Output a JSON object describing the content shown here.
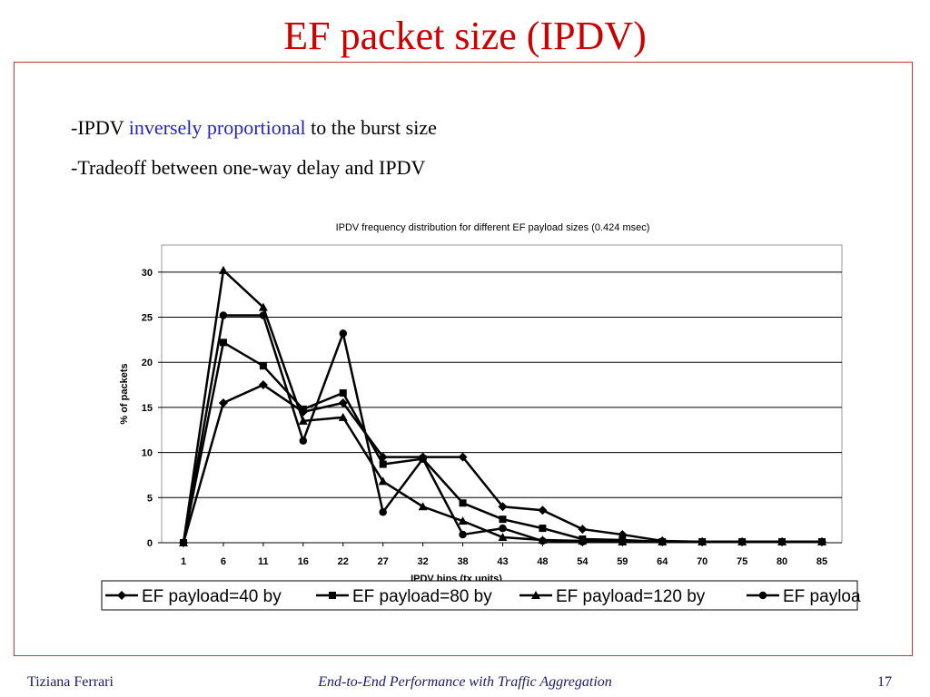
{
  "slide": {
    "title": "EF packet size (IPDV)",
    "bullets": [
      {
        "prefix": "-IPDV ",
        "highlight": "inversely proportional",
        "suffix": " to the burst size"
      },
      {
        "prefix": "-Tradeoff between one-way delay and IPDV",
        "highlight": "",
        "suffix": ""
      }
    ],
    "highlight_color": "#2222cc",
    "title_color": "#cc0000"
  },
  "footer": {
    "author": "Tiziana Ferrari",
    "title": "End-to-End Performance with Traffic Aggregation",
    "page": "17"
  },
  "chart_data": {
    "type": "line",
    "title": "IPDV frequency distribution for different EF payload sizes (0.424 msec)",
    "xlabel": "IPDV bins (tx units)",
    "ylabel": "% of packets",
    "categories": [
      "1",
      "6",
      "11",
      "16",
      "22",
      "27",
      "32",
      "38",
      "43",
      "48",
      "54",
      "59",
      "64",
      "70",
      "75",
      "80",
      "85"
    ],
    "ylim": [
      0,
      33
    ],
    "yticks": [
      0,
      5,
      10,
      15,
      20,
      25,
      30
    ],
    "grid": true,
    "legend_position": "bottom",
    "series": [
      {
        "name": "EF payload=40 by",
        "marker": "diamond",
        "values": [
          0,
          15.5,
          17.5,
          14.5,
          15.5,
          9.5,
          9.5,
          9.5,
          4,
          3.6,
          1.5,
          0.9,
          0.2,
          0.1,
          0.1,
          0.1,
          0.1
        ]
      },
      {
        "name": "EF payload=80 by",
        "marker": "square",
        "values": [
          0,
          22.2,
          19.6,
          14.8,
          16.6,
          8.7,
          9.3,
          4.4,
          2.6,
          1.6,
          0.4,
          0.3,
          0.1,
          0.1,
          0.1,
          0.1,
          0.1
        ]
      },
      {
        "name": "EF payload=120 by",
        "marker": "triangle",
        "values": [
          0,
          30.2,
          26.1,
          13.5,
          13.9,
          6.8,
          4,
          2.4,
          0.6,
          0.3,
          0.2,
          0.1,
          0.1,
          0.1,
          0.1,
          0.1,
          0.1
        ]
      },
      {
        "name": "EF payloa",
        "marker": "circle",
        "values": [
          0,
          25.2,
          25.2,
          11.3,
          23.2,
          3.4,
          9.3,
          0.9,
          1.6,
          0.2,
          0.1,
          0.1,
          0.1,
          0.1,
          0.1,
          0.1,
          0.1
        ]
      }
    ]
  }
}
